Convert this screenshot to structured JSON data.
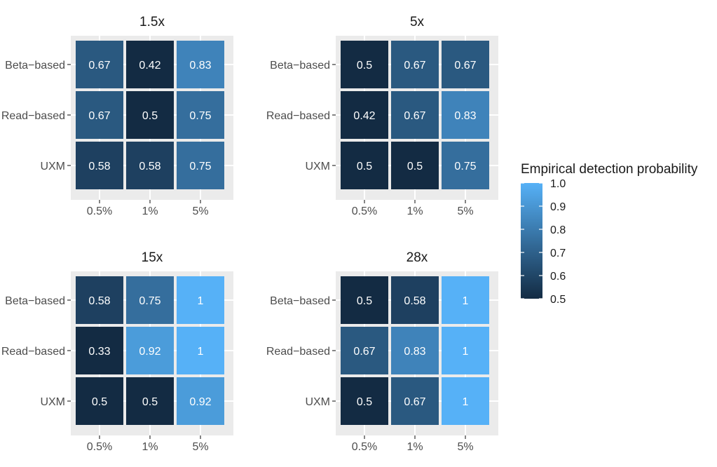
{
  "chart_data": {
    "type": "heatmap",
    "x_categories": [
      "0.5%",
      "1%",
      "5%"
    ],
    "y_categories": [
      "Beta−based",
      "Read−based",
      "UXM"
    ],
    "panels": [
      {
        "title": "1.5x",
        "values": [
          [
            0.67,
            0.42,
            0.83
          ],
          [
            0.67,
            0.5,
            0.75
          ],
          [
            0.58,
            0.58,
            0.75
          ]
        ],
        "labels": [
          [
            "0.67",
            "0.42",
            "0.83"
          ],
          [
            "0.67",
            "0.5",
            "0.75"
          ],
          [
            "0.58",
            "0.58",
            "0.75"
          ]
        ]
      },
      {
        "title": "5x",
        "values": [
          [
            0.5,
            0.67,
            0.67
          ],
          [
            0.42,
            0.67,
            0.83
          ],
          [
            0.5,
            0.5,
            0.75
          ]
        ],
        "labels": [
          [
            "0.5",
            "0.67",
            "0.67"
          ],
          [
            "0.42",
            "0.67",
            "0.83"
          ],
          [
            "0.5",
            "0.5",
            "0.75"
          ]
        ]
      },
      {
        "title": "15x",
        "values": [
          [
            0.58,
            0.75,
            1
          ],
          [
            0.33,
            0.92,
            1
          ],
          [
            0.5,
            0.5,
            0.92
          ]
        ],
        "labels": [
          [
            "0.58",
            "0.75",
            "1"
          ],
          [
            "0.33",
            "0.92",
            "1"
          ],
          [
            "0.5",
            "0.5",
            "0.92"
          ]
        ]
      },
      {
        "title": "28x",
        "values": [
          [
            0.5,
            0.58,
            1
          ],
          [
            0.67,
            0.83,
            1
          ],
          [
            0.5,
            0.67,
            1
          ]
        ],
        "labels": [
          [
            "0.5",
            "0.58",
            "1"
          ],
          [
            "0.67",
            "0.83",
            "1"
          ],
          [
            "0.5",
            "0.67",
            "1"
          ]
        ]
      }
    ],
    "legend": {
      "title": "Empirical detection probability",
      "placement": "right",
      "range": [
        0.5,
        1.0
      ],
      "breaks": [
        1.0,
        0.9,
        0.8,
        0.7,
        0.6,
        0.5
      ],
      "break_labels": [
        "1.0",
        "0.9",
        "0.8",
        "0.7",
        "0.6",
        "0.5"
      ],
      "low_color": "#132b43",
      "high_color": "#56b1f7"
    },
    "colors": {
      "panel_background": "#ebebeb",
      "text_dark": "#4d4d4d",
      "title": "#1a1a1a",
      "cell_label": "#ffffff"
    }
  }
}
